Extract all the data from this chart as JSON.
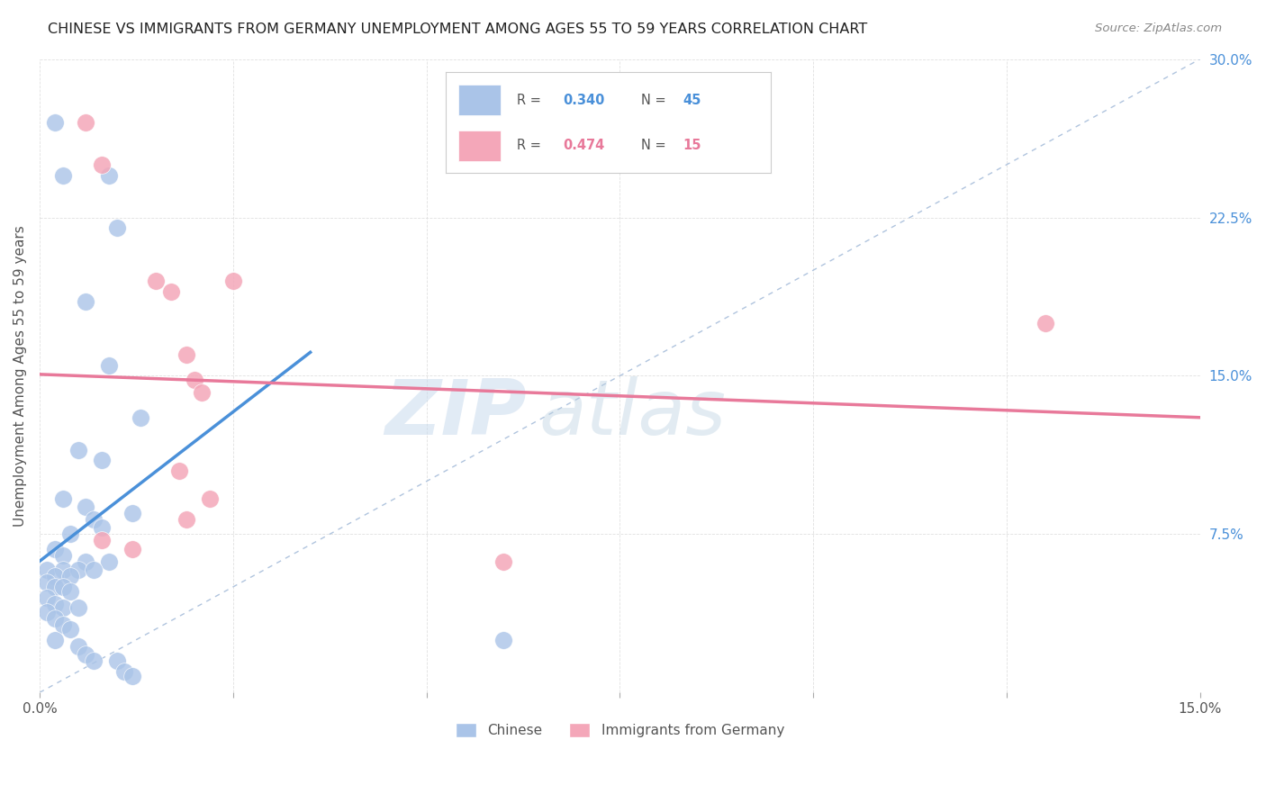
{
  "title": "CHINESE VS IMMIGRANTS FROM GERMANY UNEMPLOYMENT AMONG AGES 55 TO 59 YEARS CORRELATION CHART",
  "source": "Source: ZipAtlas.com",
  "ylabel": "Unemployment Among Ages 55 to 59 years",
  "xlim": [
    0.0,
    0.15
  ],
  "ylim": [
    0.0,
    0.3
  ],
  "xticks": [
    0.0,
    0.025,
    0.05,
    0.075,
    0.1,
    0.125,
    0.15
  ],
  "yticks": [
    0.0,
    0.075,
    0.15,
    0.225,
    0.3
  ],
  "xtick_labels": [
    "0.0%",
    "",
    "",
    "",
    "",
    "",
    "15.0%"
  ],
  "ytick_labels": [
    "",
    "7.5%",
    "15.0%",
    "22.5%",
    "30.0%"
  ],
  "legend_entries": [
    {
      "label": "Chinese",
      "R": 0.34,
      "N": 45,
      "color": "#aac4e8"
    },
    {
      "label": "Immigrants from Germany",
      "R": 0.474,
      "N": 15,
      "color": "#f4a7b9"
    }
  ],
  "chinese_scatter": [
    [
      0.002,
      0.27
    ],
    [
      0.003,
      0.245
    ],
    [
      0.009,
      0.245
    ],
    [
      0.01,
      0.22
    ],
    [
      0.006,
      0.185
    ],
    [
      0.009,
      0.155
    ],
    [
      0.013,
      0.13
    ],
    [
      0.005,
      0.115
    ],
    [
      0.008,
      0.11
    ],
    [
      0.003,
      0.092
    ],
    [
      0.006,
      0.088
    ],
    [
      0.007,
      0.082
    ],
    [
      0.012,
      0.085
    ],
    [
      0.004,
      0.075
    ],
    [
      0.008,
      0.078
    ],
    [
      0.002,
      0.068
    ],
    [
      0.003,
      0.065
    ],
    [
      0.006,
      0.062
    ],
    [
      0.009,
      0.062
    ],
    [
      0.001,
      0.058
    ],
    [
      0.003,
      0.058
    ],
    [
      0.005,
      0.058
    ],
    [
      0.007,
      0.058
    ],
    [
      0.002,
      0.055
    ],
    [
      0.004,
      0.055
    ],
    [
      0.001,
      0.052
    ],
    [
      0.002,
      0.05
    ],
    [
      0.003,
      0.05
    ],
    [
      0.004,
      0.048
    ],
    [
      0.001,
      0.045
    ],
    [
      0.002,
      0.042
    ],
    [
      0.003,
      0.04
    ],
    [
      0.005,
      0.04
    ],
    [
      0.001,
      0.038
    ],
    [
      0.002,
      0.035
    ],
    [
      0.003,
      0.032
    ],
    [
      0.004,
      0.03
    ],
    [
      0.002,
      0.025
    ],
    [
      0.005,
      0.022
    ],
    [
      0.006,
      0.018
    ],
    [
      0.007,
      0.015
    ],
    [
      0.01,
      0.015
    ],
    [
      0.011,
      0.01
    ],
    [
      0.012,
      0.008
    ],
    [
      0.06,
      0.025
    ]
  ],
  "german_scatter": [
    [
      0.006,
      0.27
    ],
    [
      0.008,
      0.25
    ],
    [
      0.015,
      0.195
    ],
    [
      0.017,
      0.19
    ],
    [
      0.025,
      0.195
    ],
    [
      0.019,
      0.16
    ],
    [
      0.02,
      0.148
    ],
    [
      0.021,
      0.142
    ],
    [
      0.018,
      0.105
    ],
    [
      0.022,
      0.092
    ],
    [
      0.019,
      0.082
    ],
    [
      0.008,
      0.072
    ],
    [
      0.012,
      0.068
    ],
    [
      0.06,
      0.062
    ],
    [
      0.13,
      0.175
    ]
  ],
  "chinese_line_color": "#4a90d9",
  "german_line_color": "#e8799a",
  "diagonal_color": "#b0c4de",
  "watermark_color": "#dce8f0",
  "bg_color": "#ffffff",
  "grid_color": "#e0e0e0",
  "chinese_line_x": [
    0.0,
    0.035
  ],
  "german_line_x": [
    0.0,
    0.15
  ]
}
